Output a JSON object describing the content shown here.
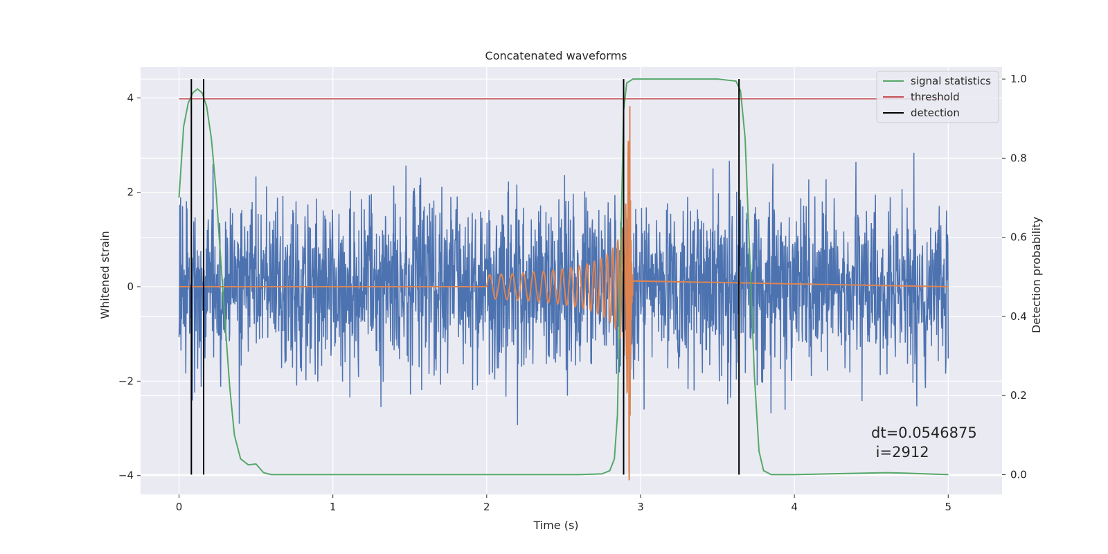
{
  "colors": {
    "background": "#eaeaf2",
    "grid": "#ffffff",
    "strain": "#4c72b0",
    "template": "#dd8452",
    "signal_statistics": "#55a868",
    "threshold": "#c44e52",
    "detection": "#000000"
  },
  "chart_data": {
    "type": "line",
    "title": "Concatenated waveforms",
    "xlabel": "Time (s)",
    "ylabel": "Whitened strain",
    "y2label": "Detection probability",
    "xlim": [
      -0.25,
      5.35
    ],
    "ylim": [
      -4.4,
      4.65
    ],
    "y2lim": [
      -0.05,
      1.03
    ],
    "xticks": [
      0,
      1,
      2,
      3,
      4,
      5
    ],
    "yticks": [
      -4,
      -2,
      0,
      2,
      4
    ],
    "y2ticks": [
      0.0,
      0.2,
      0.4,
      0.6,
      0.8,
      1.0
    ],
    "xtick_labels": [
      "0",
      "1",
      "2",
      "3",
      "4",
      "5"
    ],
    "ytick_labels": [
      "−4",
      "−2",
      "0",
      "2",
      "4"
    ],
    "y2tick_labels": [
      "0.0",
      "0.2",
      "0.4",
      "0.6",
      "0.8",
      "1.0"
    ],
    "grid": true,
    "legend_position": "top-right",
    "legend": [
      "signal statistics",
      "threshold",
      "detection"
    ],
    "strain_noise": {
      "x_range": [
        0,
        5
      ],
      "std": 0.9,
      "max_abs_approx": 3.8
    },
    "template_chirp": {
      "x_range": [
        2.0,
        2.95
      ],
      "amplitude_start": 0.25,
      "amplitude_peak": 4.1,
      "merger_time": 2.93
    },
    "signal_statistics": {
      "x": [
        0,
        0.03,
        0.06,
        0.09,
        0.12,
        0.15,
        0.18,
        0.21,
        0.24,
        0.27,
        0.3,
        0.33,
        0.36,
        0.4,
        0.45,
        0.5,
        0.55,
        0.6,
        0.65,
        1.0,
        2.0,
        2.6,
        2.75,
        2.8,
        2.83,
        2.85,
        2.87,
        2.89,
        2.91,
        2.95,
        3.0,
        3.5,
        3.62,
        3.65,
        3.68,
        3.71,
        3.74,
        3.77,
        3.8,
        3.85,
        4.0,
        4.6,
        4.7,
        5.0
      ],
      "y": [
        0.7,
        0.88,
        0.94,
        0.965,
        0.975,
        0.965,
        0.93,
        0.85,
        0.72,
        0.55,
        0.38,
        0.22,
        0.1,
        0.04,
        0.025,
        0.027,
        0.005,
        0.0,
        0.0,
        0.0,
        0.0,
        0.0,
        0.002,
        0.01,
        0.04,
        0.15,
        0.55,
        0.92,
        0.99,
        1.0,
        1.0,
        1.0,
        0.995,
        0.97,
        0.85,
        0.55,
        0.25,
        0.06,
        0.01,
        0.0,
        0.0,
        0.005,
        0.004,
        0.0
      ]
    },
    "threshold": 0.95,
    "detections": [
      0.08,
      0.16,
      2.89,
      3.64
    ]
  },
  "annotation": {
    "line1": "dt=0.0546875",
    "line2": " i=2912"
  }
}
